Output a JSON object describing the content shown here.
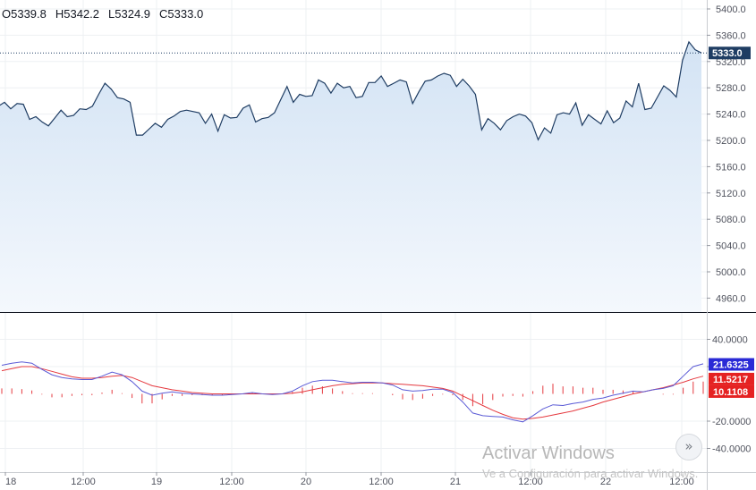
{
  "ohlc": {
    "open": "O5339.8",
    "high": "H5342.2",
    "low": "L5324.9",
    "close": "C5333.0"
  },
  "colors": {
    "price_line": "#1f3d63",
    "price_fill": "#dde9f6",
    "macd": "#5b5bd6",
    "signal": "#e5393f",
    "histogram": "#e5393f",
    "last_price_label_bg": "#1f3d63",
    "macd_label_bg": "#2a2ad6",
    "signal_label_bg": "#e52222"
  },
  "watermark": {
    "title": "Activar Windows",
    "subtitle": "Ve a Configuración para activar Windows."
  },
  "scroll_icon": "double-chevron-right-icon",
  "chart_data": [
    {
      "type": "line",
      "ylim": [
        4940,
        5400
      ],
      "y_ticks": [
        "5400.0",
        "5360.0",
        "5320.0",
        "5280.0",
        "5240.0",
        "5200.0",
        "5160.0",
        "5120.0",
        "5080.0",
        "5040.0",
        "5000.0",
        "4960.0"
      ],
      "last_value_label": "5333.0",
      "x_ticks": [
        "18",
        "12:00",
        "19",
        "12:00",
        "20",
        "12:00",
        "21",
        "12:00",
        "22",
        "12:00"
      ],
      "series": [
        {
          "values": [
            5252,
            5258,
            5248,
            5256,
            5255,
            5232,
            5236,
            5228,
            5222,
            5234,
            5246,
            5236,
            5238,
            5248,
            5247,
            5252,
            5270,
            5287,
            5278,
            5265,
            5263,
            5258,
            5208,
            5208,
            5217,
            5226,
            5220,
            5232,
            5237,
            5244,
            5246,
            5244,
            5242,
            5226,
            5240,
            5214,
            5239,
            5234,
            5235,
            5249,
            5254,
            5228,
            5233,
            5235,
            5242,
            5262,
            5282,
            5258,
            5270,
            5267,
            5268,
            5292,
            5287,
            5272,
            5287,
            5280,
            5282,
            5265,
            5267,
            5288,
            5288,
            5298,
            5282,
            5287,
            5292,
            5289,
            5256,
            5274,
            5290,
            5292,
            5298,
            5302,
            5299,
            5282,
            5293,
            5283,
            5270,
            5216,
            5233,
            5226,
            5216,
            5230,
            5236,
            5240,
            5237,
            5227,
            5201,
            5219,
            5211,
            5239,
            5242,
            5240,
            5257,
            5223,
            5239,
            5232,
            5225,
            5245,
            5227,
            5234,
            5260,
            5251,
            5287,
            5247,
            5249,
            5266,
            5283,
            5276,
            5266,
            5322,
            5350,
            5338,
            5333
          ]
        }
      ]
    },
    {
      "type": "line",
      "ylim": [
        -46,
        46
      ],
      "y_ticks": [
        "40.0000",
        "20.0000",
        "-20.0000",
        "-40.0000"
      ],
      "value_labels": {
        "macd": "21.6325",
        "signal": "11.5217",
        "histogram": "10.1108"
      },
      "series": [
        {
          "values": [
            21,
            22.5,
            23.5,
            22.5,
            18,
            14,
            12,
            11,
            10.5,
            10.5,
            13,
            16,
            14,
            9,
            2,
            -1,
            0.5,
            1.5,
            0.5,
            0,
            -0.5,
            -1,
            -1,
            -0.5,
            0,
            1,
            0,
            -0.5,
            0,
            2,
            6,
            9,
            10,
            10,
            9,
            8,
            8.5,
            8.5,
            8,
            6.5,
            3,
            2,
            2.5,
            3.5,
            3.5,
            1,
            -6,
            -14,
            -16,
            -16.5,
            -17,
            -19,
            -20.5,
            -16,
            -11,
            -8,
            -8.5,
            -7,
            -6,
            -4,
            -3,
            -1,
            0.5,
            2,
            1.5,
            3,
            4,
            6,
            13,
            20,
            22
          ]
        },
        {
          "values": [
            17,
            18.5,
            20,
            20,
            18.5,
            16.5,
            14.5,
            12.5,
            11.5,
            11.5,
            12,
            13,
            13.5,
            12,
            9,
            6,
            4.5,
            3,
            2,
            1,
            0.5,
            0,
            0,
            0,
            0,
            0,
            0,
            0,
            0,
            0.5,
            1.5,
            3,
            4.5,
            6,
            7,
            7.5,
            8,
            8,
            8,
            7.5,
            7,
            6.5,
            6,
            5,
            4,
            2,
            -1.5,
            -5,
            -8.5,
            -12,
            -15,
            -17.5,
            -18.5,
            -18,
            -17,
            -15.5,
            -14,
            -12.5,
            -10.5,
            -8.5,
            -6,
            -4,
            -2,
            0,
            1.5,
            3,
            4.5,
            6.5,
            8.5,
            11,
            13
          ]
        },
        {
          "values": [
            4,
            4,
            3.5,
            2.5,
            -0.5,
            -2.5,
            -2.5,
            -1.5,
            -1,
            -1,
            1,
            3,
            0.5,
            -3,
            -7,
            -7,
            -4,
            -1.5,
            -1.5,
            -1,
            -1,
            -1,
            -1,
            -0.5,
            0,
            1,
            0,
            -0.5,
            0,
            1.5,
            4.5,
            6,
            5.5,
            4,
            2,
            0.5,
            0.5,
            0.5,
            0,
            -1,
            -4,
            -4.5,
            -3.5,
            -1.5,
            -0.5,
            -1,
            -4.5,
            -9,
            -7.5,
            -4.5,
            -2,
            -1.5,
            -2,
            2,
            6,
            7.5,
            5.5,
            5.5,
            4.5,
            4.5,
            3,
            3,
            2.5,
            2,
            0,
            0,
            -0.5,
            -0.5,
            4.5,
            9,
            9
          ]
        }
      ]
    }
  ]
}
